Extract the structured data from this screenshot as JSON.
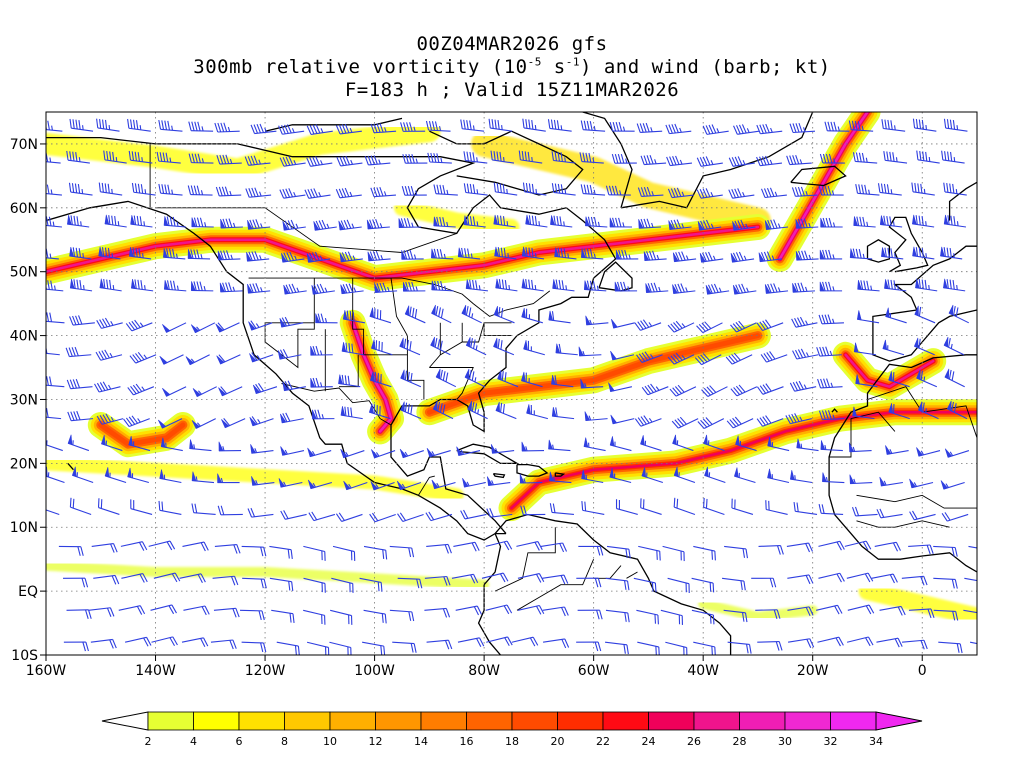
{
  "title": {
    "line1": "00Z04MAR2026 gfs",
    "line2_pre": "300mb relative vorticity (10",
    "line2_exp1": "-5",
    "line2_mid": " s",
    "line2_exp2": "-1",
    "line2_post": ") and wind (barb; kt)",
    "line3": "F=183 h ; Valid 15Z11MAR2026"
  },
  "map": {
    "lon_range": [
      -160,
      10
    ],
    "lat_range": [
      -10,
      75
    ],
    "lon_ticks": [
      {
        "lon": -160,
        "label": "160W"
      },
      {
        "lon": -140,
        "label": "140W"
      },
      {
        "lon": -120,
        "label": "120W"
      },
      {
        "lon": -100,
        "label": "100W"
      },
      {
        "lon": -80,
        "label": "80W"
      },
      {
        "lon": -60,
        "label": "60W"
      },
      {
        "lon": -40,
        "label": "40W"
      },
      {
        "lon": -20,
        "label": "20W"
      },
      {
        "lon": 0,
        "label": "0"
      }
    ],
    "lat_ticks": [
      {
        "lat": 70,
        "label": "70N"
      },
      {
        "lat": 60,
        "label": "60N"
      },
      {
        "lat": 50,
        "label": "50N"
      },
      {
        "lat": 40,
        "label": "40N"
      },
      {
        "lat": 30,
        "label": "30N"
      },
      {
        "lat": 20,
        "label": "20N"
      },
      {
        "lat": 10,
        "label": "10N"
      },
      {
        "lat": 0,
        "label": "EQ"
      },
      {
        "lat": -10,
        "label": "10S"
      }
    ],
    "barb_color": "#2f3fe0",
    "coast_color": "#000000",
    "grid": "dotted"
  },
  "colorbar": {
    "labels": [
      "2",
      "4",
      "6",
      "8",
      "10",
      "12",
      "14",
      "16",
      "18",
      "20",
      "22",
      "24",
      "26",
      "28",
      "30",
      "32",
      "34"
    ],
    "colors": [
      "#e6ff33",
      "#ffff00",
      "#ffe100",
      "#ffc800",
      "#ffaf00",
      "#ff9600",
      "#ff7d00",
      "#ff6400",
      "#ff4b00",
      "#ff2d00",
      "#ff0a14",
      "#f0005a",
      "#f0148c",
      "#f01eb4",
      "#f028d2",
      "#f028f0"
    ]
  },
  "chart_data": {
    "type": "heatmap",
    "variable": "300mb relative vorticity",
    "units": "10^-5 s^-1",
    "colorbar_levels": [
      2,
      4,
      6,
      8,
      10,
      12,
      14,
      16,
      18,
      20,
      22,
      24,
      26,
      28,
      30,
      32,
      34
    ],
    "features": [
      {
        "lonlat": [
          [
            -160,
            50
          ],
          [
            -150,
            52
          ],
          [
            -140,
            54
          ],
          [
            -130,
            55
          ],
          [
            -120,
            55
          ],
          [
            -110,
            52
          ],
          [
            -100,
            49
          ],
          [
            -90,
            50
          ],
          [
            -80,
            51
          ],
          [
            -70,
            53
          ],
          [
            -60,
            54
          ],
          [
            -50,
            55
          ],
          [
            -40,
            56
          ],
          [
            -30,
            57
          ]
        ],
        "peak": 26
      },
      {
        "lonlat": [
          [
            -104,
            42
          ],
          [
            -102,
            37
          ],
          [
            -100,
            33
          ],
          [
            -98,
            30
          ],
          [
            -97,
            27
          ],
          [
            -99,
            25
          ]
        ],
        "peak": 28
      },
      {
        "lonlat": [
          [
            -26,
            52
          ],
          [
            -22,
            58
          ],
          [
            -18,
            64
          ],
          [
            -14,
            70
          ],
          [
            -10,
            75
          ]
        ],
        "peak": 28
      },
      {
        "lonlat": [
          [
            -14,
            37
          ],
          [
            -10,
            33
          ],
          [
            -6,
            32
          ],
          [
            -2,
            34
          ],
          [
            2,
            36
          ]
        ],
        "peak": 26
      },
      {
        "lonlat": [
          [
            -75,
            13
          ],
          [
            -70,
            17
          ],
          [
            -60,
            19
          ],
          [
            -45,
            20
          ],
          [
            -35,
            22
          ],
          [
            -25,
            25
          ],
          [
            -15,
            27
          ],
          [
            -5,
            28
          ],
          [
            10,
            28
          ]
        ],
        "peak": 24
      },
      {
        "lonlat": [
          [
            -90,
            28
          ],
          [
            -80,
            31
          ],
          [
            -70,
            32
          ],
          [
            -60,
            33
          ],
          [
            -50,
            36
          ],
          [
            -40,
            38
          ],
          [
            -30,
            40
          ]
        ],
        "peak": 18
      },
      {
        "lonlat": [
          [
            -150,
            26
          ],
          [
            -145,
            23
          ],
          [
            -138,
            24
          ],
          [
            -135,
            26
          ]
        ],
        "peak": 18
      }
    ]
  }
}
